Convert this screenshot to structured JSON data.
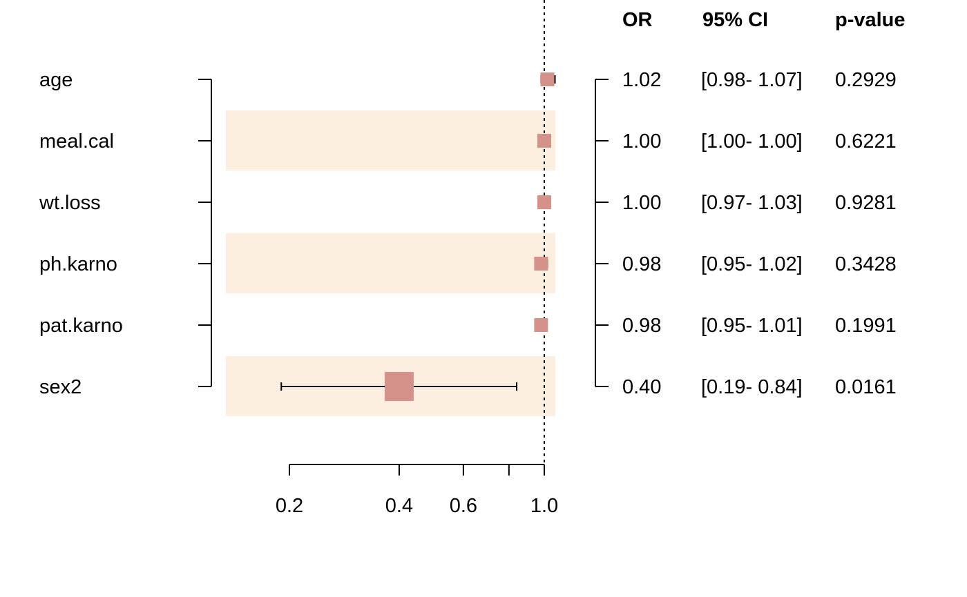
{
  "chart_data": {
    "type": "forest",
    "x_scale": "log",
    "reference_line": 1.0,
    "xlim": [
      0.2,
      1.0
    ],
    "x_ticks": [
      0.2,
      0.4,
      0.6,
      0.8,
      1.0
    ],
    "x_tick_labels": [
      "0.2",
      "0.4",
      "0.6",
      "",
      "1.0"
    ],
    "columns": {
      "or": "OR",
      "ci": "95% CI",
      "p": "p-value"
    },
    "rows": [
      {
        "label": "age",
        "or": 1.02,
        "lower": 0.98,
        "upper": 1.07,
        "or_text": "1.02",
        "ci_text": "[0.98- 1.07]",
        "p_text": "0.2929",
        "shaded": false
      },
      {
        "label": "meal.cal",
        "or": 1.0,
        "lower": 1.0,
        "upper": 1.0,
        "or_text": "1.00",
        "ci_text": "[1.00- 1.00]",
        "p_text": "0.6221",
        "shaded": true
      },
      {
        "label": "wt.loss",
        "or": 1.0,
        "lower": 0.97,
        "upper": 1.03,
        "or_text": "1.00",
        "ci_text": "[0.97- 1.03]",
        "p_text": "0.9281",
        "shaded": false
      },
      {
        "label": "ph.karno",
        "or": 0.98,
        "lower": 0.95,
        "upper": 1.02,
        "or_text": "0.98",
        "ci_text": "[0.95- 1.02]",
        "p_text": "0.3428",
        "shaded": true
      },
      {
        "label": "pat.karno",
        "or": 0.98,
        "lower": 0.95,
        "upper": 1.01,
        "or_text": "0.98",
        "ci_text": "[0.95- 1.01]",
        "p_text": "0.1991",
        "shaded": false
      },
      {
        "label": "sex2",
        "or": 0.4,
        "lower": 0.19,
        "upper": 0.84,
        "or_text": "0.40",
        "ci_text": "[0.19- 0.84]",
        "p_text": "0.0161",
        "shaded": true
      }
    ],
    "colors": {
      "marker": "#d4928a",
      "band": "#fdefe0",
      "line": "#000000"
    }
  }
}
